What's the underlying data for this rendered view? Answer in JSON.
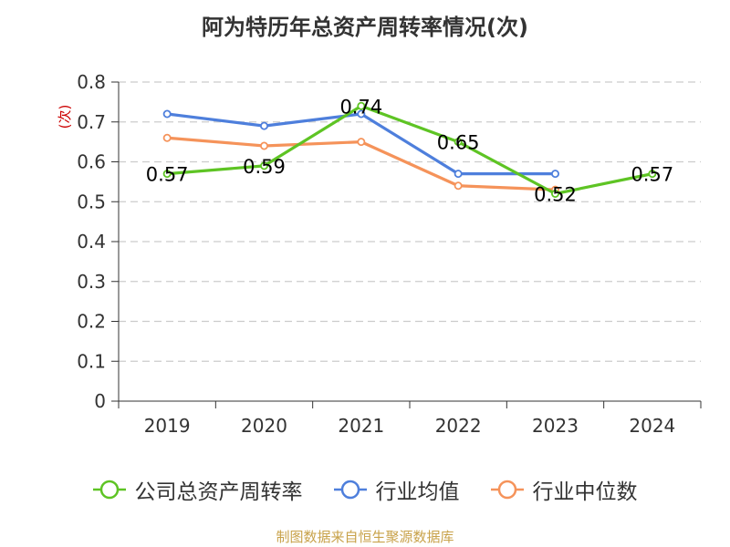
{
  "title": "阿为特历年总资产周转率情况(次)",
  "footer": "制图数据来自恒生聚源数据库",
  "chart_data": {
    "type": "line",
    "title": "阿为特历年总资产周转率情况(次)",
    "unit": "(次)",
    "categories": [
      "2019",
      "2020",
      "2021",
      "2022",
      "2023",
      "2024"
    ],
    "ylim": [
      0,
      0.8
    ],
    "yticks": [
      "0",
      "0.1",
      "0.2",
      "0.3",
      "0.4",
      "0.5",
      "0.6",
      "0.7",
      "0.8"
    ],
    "grid": true,
    "legend_position": "bottom",
    "series": [
      {
        "name": "公司总资产周转率",
        "color": "#5ec424",
        "values": [
          0.57,
          0.59,
          0.74,
          0.65,
          0.52,
          0.57
        ],
        "labels": [
          "0.57",
          "0.59",
          "0.74",
          "0.65",
          "0.52",
          "0.57"
        ]
      },
      {
        "name": "行业均值",
        "color": "#4e7fdc",
        "values": [
          0.72,
          0.69,
          0.72,
          0.57,
          0.57,
          null
        ]
      },
      {
        "name": "行业中位数",
        "color": "#f5935a",
        "values": [
          0.66,
          0.64,
          0.65,
          0.54,
          0.53,
          null
        ]
      }
    ]
  }
}
